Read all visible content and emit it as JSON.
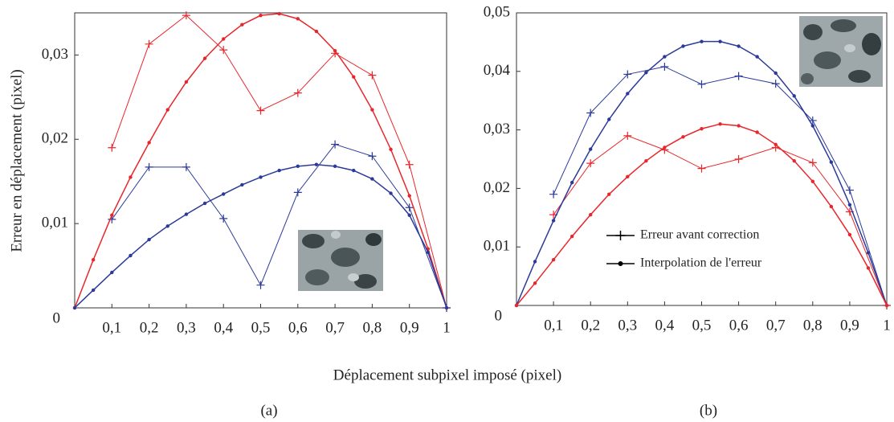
{
  "xlabel": "Déplacement subpixel imposé (pixel)",
  "chart_data": [
    {
      "type": "line",
      "caption": "(a)",
      "ylabel": "Erreur en déplacement (pixel)",
      "xlim": [
        0,
        1
      ],
      "ylim": [
        0,
        0.035
      ],
      "xticks": [
        {
          "value": 0.1,
          "label": "0,1"
        },
        {
          "value": 0.2,
          "label": "0,2"
        },
        {
          "value": 0.3,
          "label": "0,3"
        },
        {
          "value": 0.4,
          "label": "0,4"
        },
        {
          "value": 0.5,
          "label": "0,5"
        },
        {
          "value": 0.6,
          "label": "0,6"
        },
        {
          "value": 0.7,
          "label": "0,7"
        },
        {
          "value": 0.8,
          "label": "0,8"
        },
        {
          "value": 0.9,
          "label": "0,9"
        },
        1
      ],
      "yticks": [
        0,
        {
          "value": 0.01,
          "label": "0,01"
        },
        {
          "value": 0.02,
          "label": "0,02"
        },
        {
          "value": 0.03,
          "label": "0,03"
        }
      ],
      "series": [
        {
          "color": "#e8262b",
          "marker": "cross",
          "x": [
            0.1,
            0.2,
            0.3,
            0.4,
            0.5,
            0.6,
            0.7,
            0.8,
            0.9,
            1
          ],
          "values": [
            0.019,
            0.0313,
            0.0347,
            0.0306,
            0.0234,
            0.0255,
            0.0302,
            0.0276,
            0.017,
            0
          ]
        },
        {
          "color": "#2b3a9a",
          "marker": "cross",
          "x": [
            0.1,
            0.2,
            0.3,
            0.4,
            0.5,
            0.6,
            0.7,
            0.8,
            0.9,
            1
          ],
          "values": [
            0.0105,
            0.0167,
            0.0167,
            0.0106,
            0.0027,
            0.0137,
            0.0194,
            0.018,
            0.0119,
            0
          ]
        },
        {
          "color": "#e8262b",
          "marker": "dot",
          "x": [
            0,
            0.05,
            0.1,
            0.15,
            0.2,
            0.25,
            0.3,
            0.35,
            0.4,
            0.45,
            0.5,
            0.55,
            0.6,
            0.65,
            0.7,
            0.75,
            0.8,
            0.85,
            0.9,
            0.95,
            1
          ],
          "values": [
            0,
            0.0057,
            0.011,
            0.0155,
            0.0196,
            0.0235,
            0.0268,
            0.0296,
            0.0319,
            0.0336,
            0.0347,
            0.0349,
            0.0343,
            0.0328,
            0.0305,
            0.0274,
            0.0235,
            0.0188,
            0.0133,
            0.007,
            0
          ]
        },
        {
          "color": "#2b3a9a",
          "marker": "dot",
          "x": [
            0,
            0.05,
            0.1,
            0.15,
            0.2,
            0.25,
            0.3,
            0.35,
            0.4,
            0.45,
            0.5,
            0.55,
            0.6,
            0.65,
            0.7,
            0.75,
            0.8,
            0.85,
            0.9,
            0.95,
            1
          ],
          "values": [
            0,
            0.0021,
            0.0042,
            0.0062,
            0.0081,
            0.0097,
            0.0111,
            0.0124,
            0.0135,
            0.0146,
            0.0155,
            0.0163,
            0.0168,
            0.017,
            0.0168,
            0.0163,
            0.0153,
            0.0136,
            0.011,
            0.0066,
            0
          ]
        }
      ]
    },
    {
      "type": "line",
      "caption": "(b)",
      "xlim": [
        0,
        1
      ],
      "ylim": [
        0,
        0.05
      ],
      "xticks": [
        {
          "value": 0.1,
          "label": "0,1"
        },
        {
          "value": 0.2,
          "label": "0,2"
        },
        {
          "value": 0.3,
          "label": "0,3"
        },
        {
          "value": 0.4,
          "label": "0,4"
        },
        {
          "value": 0.5,
          "label": "0,5"
        },
        {
          "value": 0.6,
          "label": "0,6"
        },
        {
          "value": 0.7,
          "label": "0,7"
        },
        {
          "value": 0.8,
          "label": "0,8"
        },
        {
          "value": 0.9,
          "label": "0,9"
        },
        1
      ],
      "yticks": [
        0,
        {
          "value": 0.01,
          "label": "0,01"
        },
        {
          "value": 0.02,
          "label": "0,02"
        },
        {
          "value": 0.03,
          "label": "0,03"
        },
        {
          "value": 0.04,
          "label": "0,04"
        },
        {
          "value": 0.05,
          "label": "0,05"
        }
      ],
      "legend": [
        {
          "label": "Erreur avant correction",
          "marker": "cross"
        },
        {
          "label": "Interpolation de l'erreur",
          "marker": "dot"
        }
      ],
      "series": [
        {
          "color": "#2b3a9a",
          "marker": "cross",
          "x": [
            0.1,
            0.2,
            0.3,
            0.4,
            0.5,
            0.6,
            0.7,
            0.8,
            0.9,
            1
          ],
          "values": [
            0.019,
            0.0329,
            0.0395,
            0.0408,
            0.0378,
            0.0392,
            0.0379,
            0.0316,
            0.0197,
            0
          ]
        },
        {
          "color": "#e8262b",
          "marker": "cross",
          "x": [
            0.1,
            0.2,
            0.3,
            0.4,
            0.5,
            0.6,
            0.7,
            0.8,
            0.9,
            1
          ],
          "values": [
            0.0155,
            0.0243,
            0.029,
            0.0266,
            0.0234,
            0.025,
            0.027,
            0.0244,
            0.016,
            0
          ]
        },
        {
          "color": "#2b3a9a",
          "marker": "dot",
          "x": [
            0,
            0.05,
            0.1,
            0.15,
            0.2,
            0.25,
            0.3,
            0.35,
            0.4,
            0.45,
            0.5,
            0.55,
            0.6,
            0.65,
            0.7,
            0.75,
            0.8,
            0.85,
            0.9,
            0.95,
            1
          ],
          "values": [
            0,
            0.0075,
            0.0145,
            0.021,
            0.0267,
            0.0318,
            0.0362,
            0.0398,
            0.0425,
            0.0443,
            0.0451,
            0.0451,
            0.0443,
            0.0425,
            0.0397,
            0.0358,
            0.0307,
            0.0245,
            0.0172,
            0.009,
            0
          ]
        },
        {
          "color": "#e8262b",
          "marker": "dot",
          "x": [
            0,
            0.05,
            0.1,
            0.15,
            0.2,
            0.25,
            0.3,
            0.35,
            0.4,
            0.45,
            0.5,
            0.55,
            0.6,
            0.65,
            0.7,
            0.75,
            0.8,
            0.85,
            0.9,
            0.95,
            1
          ],
          "values": [
            0,
            0.0038,
            0.0078,
            0.0118,
            0.0155,
            0.019,
            0.022,
            0.0247,
            0.027,
            0.0288,
            0.0302,
            0.031,
            0.0307,
            0.0296,
            0.0275,
            0.0247,
            0.0212,
            0.0169,
            0.0121,
            0.0064,
            0
          ]
        }
      ]
    }
  ]
}
